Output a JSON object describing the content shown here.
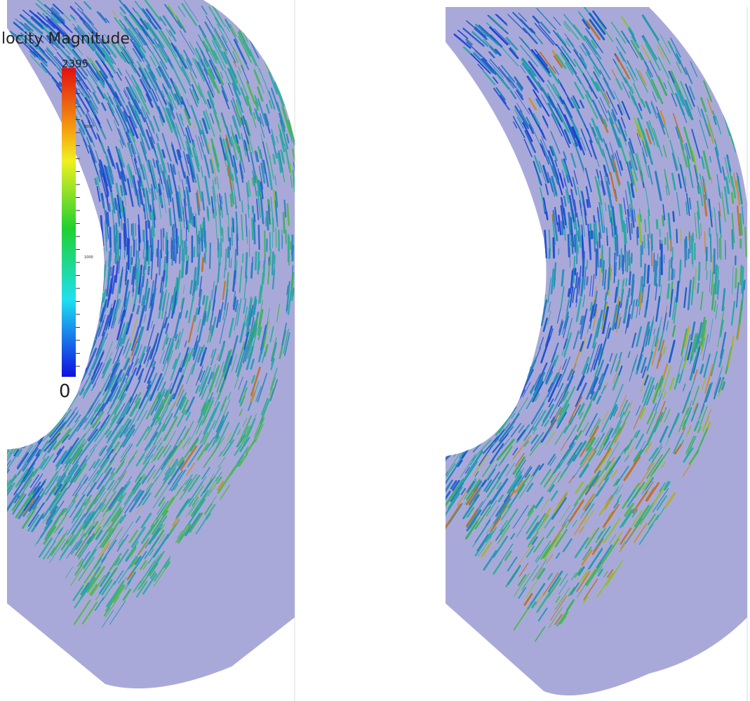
{
  "colorbar": {
    "title": "locity Magnitude",
    "max_label": "2395",
    "min_label": "0",
    "tick_labels": [
      "2000",
      "1000"
    ]
  }
}
